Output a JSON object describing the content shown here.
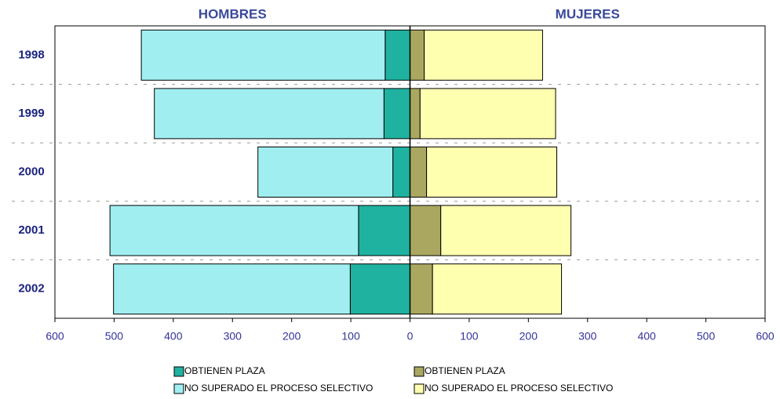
{
  "chart_data": {
    "type": "bar",
    "orientation": "horizontal",
    "stacked": true,
    "annotations": [
      "HOMBRES",
      "MUJERES"
    ],
    "categories": [
      "1998",
      "1999",
      "2000",
      "2001",
      "2002"
    ],
    "series": [
      {
        "name": "OBTIENEN PLAZA",
        "color": "#20b2a0",
        "values": [
          -42,
          -44,
          -29,
          -87,
          -101
        ]
      },
      {
        "name": "NO SUPERADO EL PROCESO SELECTIVO",
        "color": "#a0eef0",
        "values": [
          -412,
          -388,
          -228,
          -420,
          -400
        ]
      },
      {
        "name": "OBTIENEN PLAZA",
        "color": "#aaa860",
        "values": [
          24,
          17,
          28,
          52,
          38
        ]
      },
      {
        "name": "NO SUPERADO EL PROCESO SELECTIVO",
        "color": "#ffffb0",
        "values": [
          200,
          229,
          220,
          220,
          218
        ]
      }
    ],
    "xlim": [
      -600,
      600
    ],
    "xticks": [
      {
        "value": -600,
        "label": "600"
      },
      {
        "value": -500,
        "label": "500"
      },
      {
        "value": -400,
        "label": "400"
      },
      {
        "value": -300,
        "label": "300"
      },
      {
        "value": -200,
        "label": "200"
      },
      {
        "value": -100,
        "label": "100"
      },
      0,
      100,
      200,
      300,
      400,
      500,
      600
    ],
    "grid": true
  }
}
